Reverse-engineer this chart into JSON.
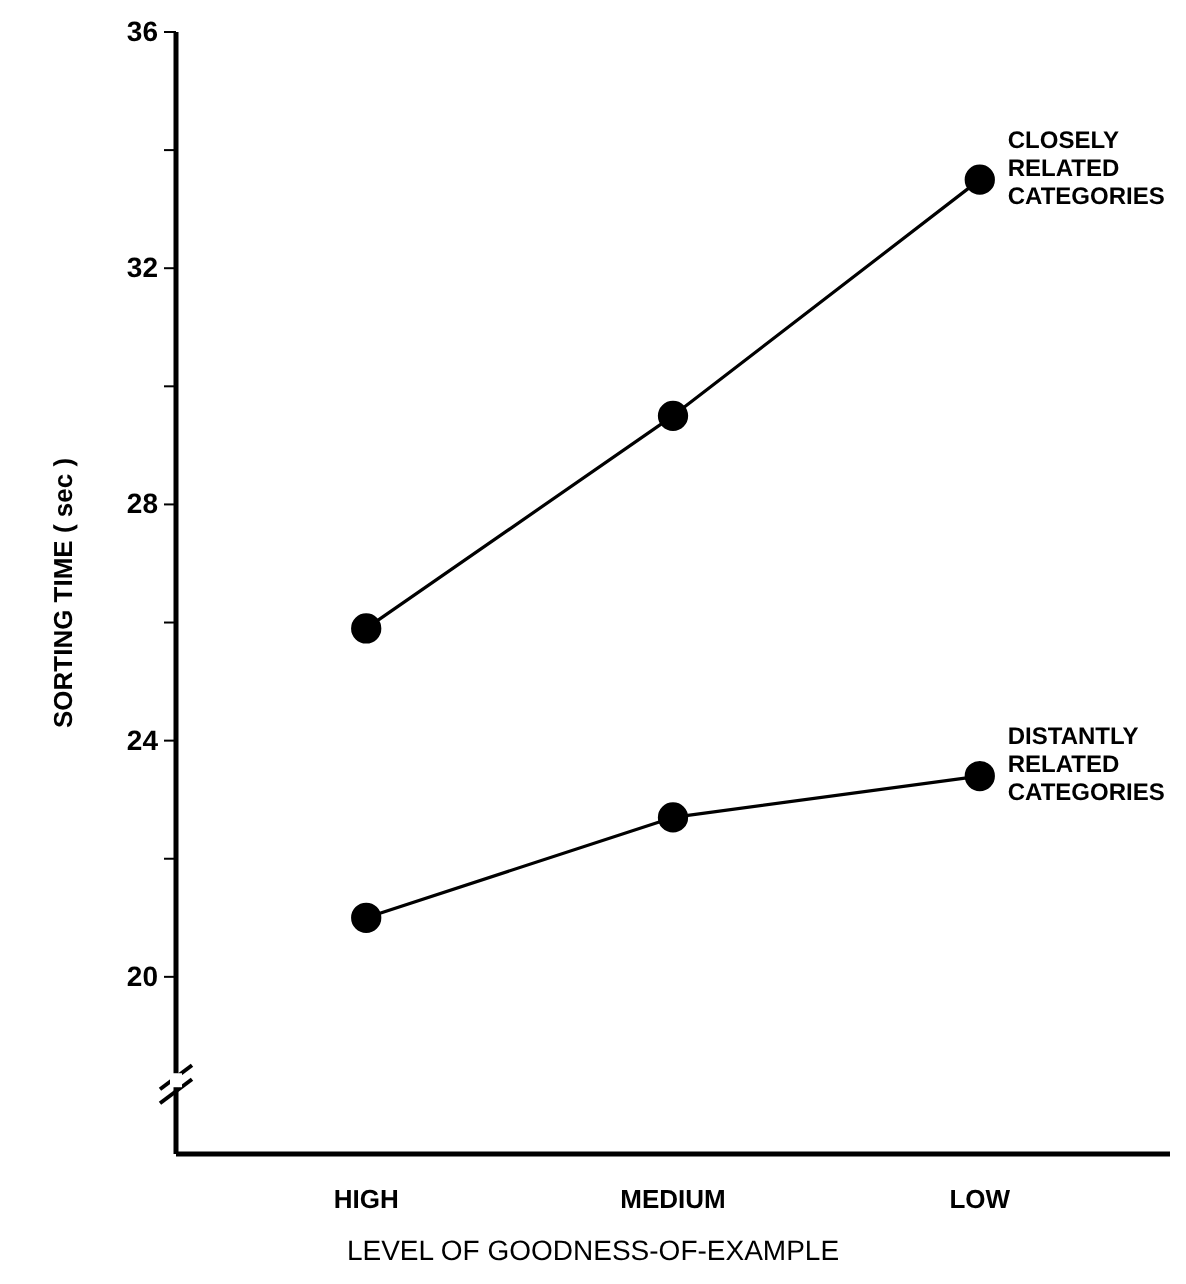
{
  "chart_data": {
    "type": "line",
    "xlabel": "LEVEL OF GOODNESS-OF-EXAMPLE",
    "ylabel": "SORTING TIME ( sec )",
    "categories": [
      "HIGH",
      "MEDIUM",
      "LOW"
    ],
    "series": [
      {
        "name": "CLOSELY RELATED CATEGORIES",
        "color": "#000000",
        "values": [
          25.9,
          29.5,
          33.5
        ]
      },
      {
        "name": "DISTANTLY RELATED CATEGORIES",
        "color": "#000000",
        "values": [
          21,
          22.7,
          23.4
        ]
      }
    ],
    "ylim": [
      17,
      36
    ],
    "yticks": [
      20,
      {
        "value": 22,
        "label": null
      },
      24,
      {
        "value": 26,
        "label": null
      },
      28,
      {
        "value": 30,
        "label": null
      },
      32,
      {
        "value": 34,
        "label": null
      },
      36
    ],
    "marker": "circle",
    "line_style": "solid",
    "grid": false
  }
}
